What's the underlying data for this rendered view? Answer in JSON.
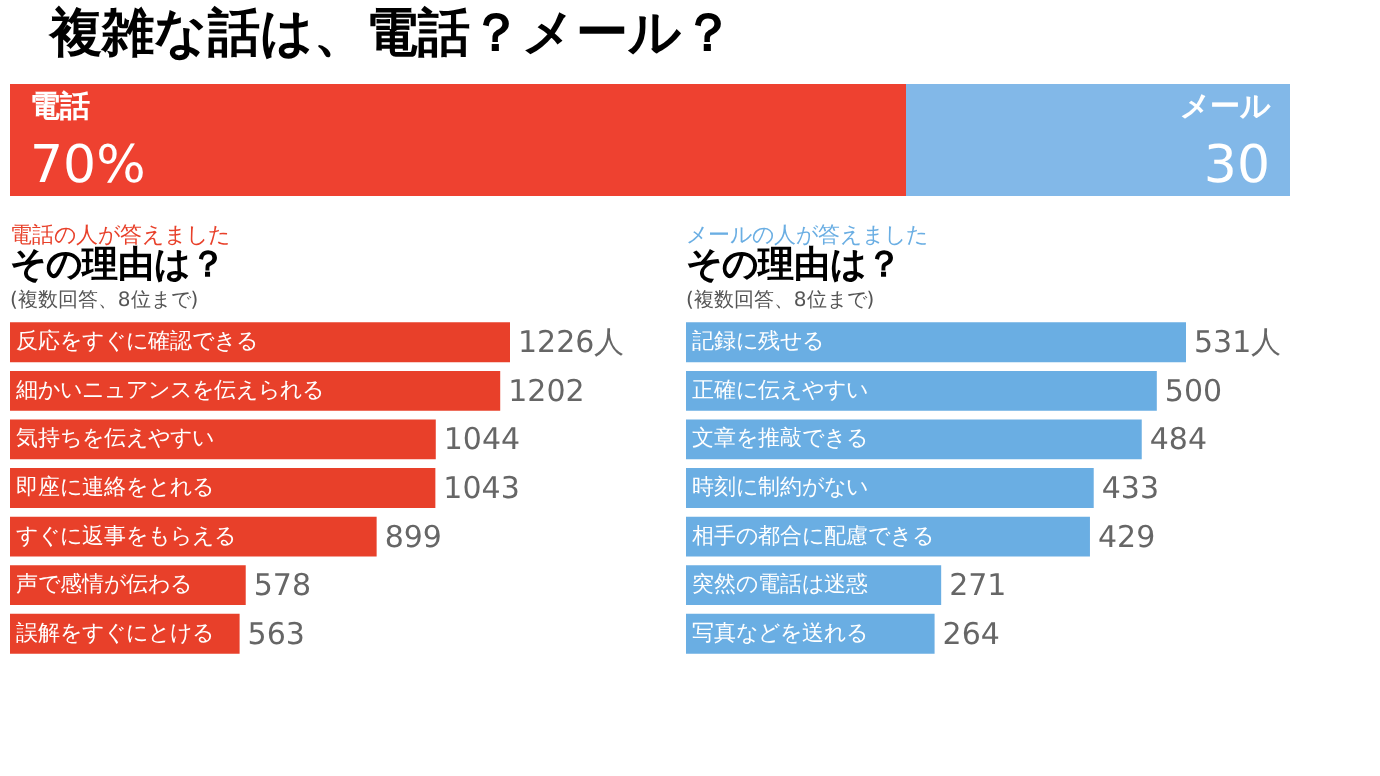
{
  "chart_data": [
    {
      "type": "bar",
      "title": "複雑な話は、電話？メール？",
      "orientation": "horizontal",
      "stacked": true,
      "categories": [
        null
      ],
      "series": [
        {
          "name": "電話",
          "color": "#ee4130",
          "values": [
            70
          ],
          "value_labels": [
            "70%"
          ]
        },
        {
          "name": "メール",
          "color": "#82b8e8",
          "values": [
            30
          ],
          "value_labels": [
            "30"
          ]
        }
      ]
    },
    {
      "type": "bar",
      "title": "その理由は？",
      "subtitle": "(複数回答、8位まで)",
      "annotations": [
        "電話の人が答えました"
      ],
      "orientation": "horizontal",
      "categories": [
        "反応をすぐに確認できる",
        "細かいニュアンスを伝えられる",
        "気持ちを伝えやすい",
        "即座に連絡をとれる",
        "すぐに返事をもらえる",
        "声で感情が伝わる",
        "誤解をすぐにとける"
      ],
      "series": [
        {
          "color": "#e8402a",
          "values": [
            1226,
            1202,
            1044,
            1043,
            899,
            578,
            563
          ],
          "value_labels": [
            "1226人",
            "1202",
            "1044",
            "1043",
            "899",
            "578",
            "563"
          ]
        }
      ]
    },
    {
      "type": "bar",
      "title": "その理由は？",
      "subtitle": "(複数回答、8位まで)",
      "annotations": [
        "メールの人が答えました"
      ],
      "orientation": "horizontal",
      "categories": [
        "記録に残せる",
        "正確に伝えやすい",
        "文章を推敲できる",
        "時刻に制約がない",
        "相手の都合に配慮できる",
        "突然の電話は迷惑",
        "写真などを送れる"
      ],
      "series": [
        {
          "color": "#6aaee3",
          "values": [
            531,
            500,
            484,
            433,
            429,
            271,
            264
          ],
          "value_labels": [
            "531人",
            "500",
            "484",
            "433",
            "429",
            "271",
            "264"
          ]
        }
      ]
    }
  ]
}
